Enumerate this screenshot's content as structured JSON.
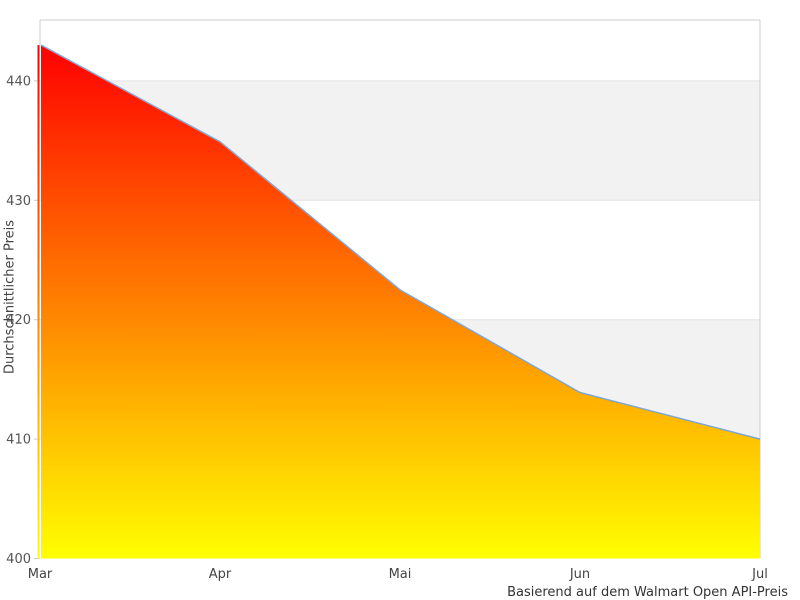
{
  "chart_data": {
    "type": "area",
    "categories": [
      "Mar",
      "Apr",
      "Mai",
      "Jun",
      "Jul"
    ],
    "values": [
      443,
      434.9,
      422.5,
      413.9,
      410
    ],
    "title": "",
    "xlabel": "",
    "ylabel": "Durchschnittlicher Preis",
    "caption": "Basierend auf dem Walmart Open API-Preis",
    "ylim": [
      400,
      445.1
    ],
    "yticks": [
      400,
      410,
      420,
      430,
      440
    ],
    "legend": "none",
    "grid": "alternating-horizontal-bands",
    "colors": {
      "gradient_top": "#ff0000",
      "gradient_bottom": "#ffff00",
      "line": "#7da7d8",
      "band": "#f2f2f2",
      "band_edge": "#e3e3e3",
      "border": "#cccccc",
      "tick_text": "#555555",
      "label_text": "#444444"
    }
  }
}
